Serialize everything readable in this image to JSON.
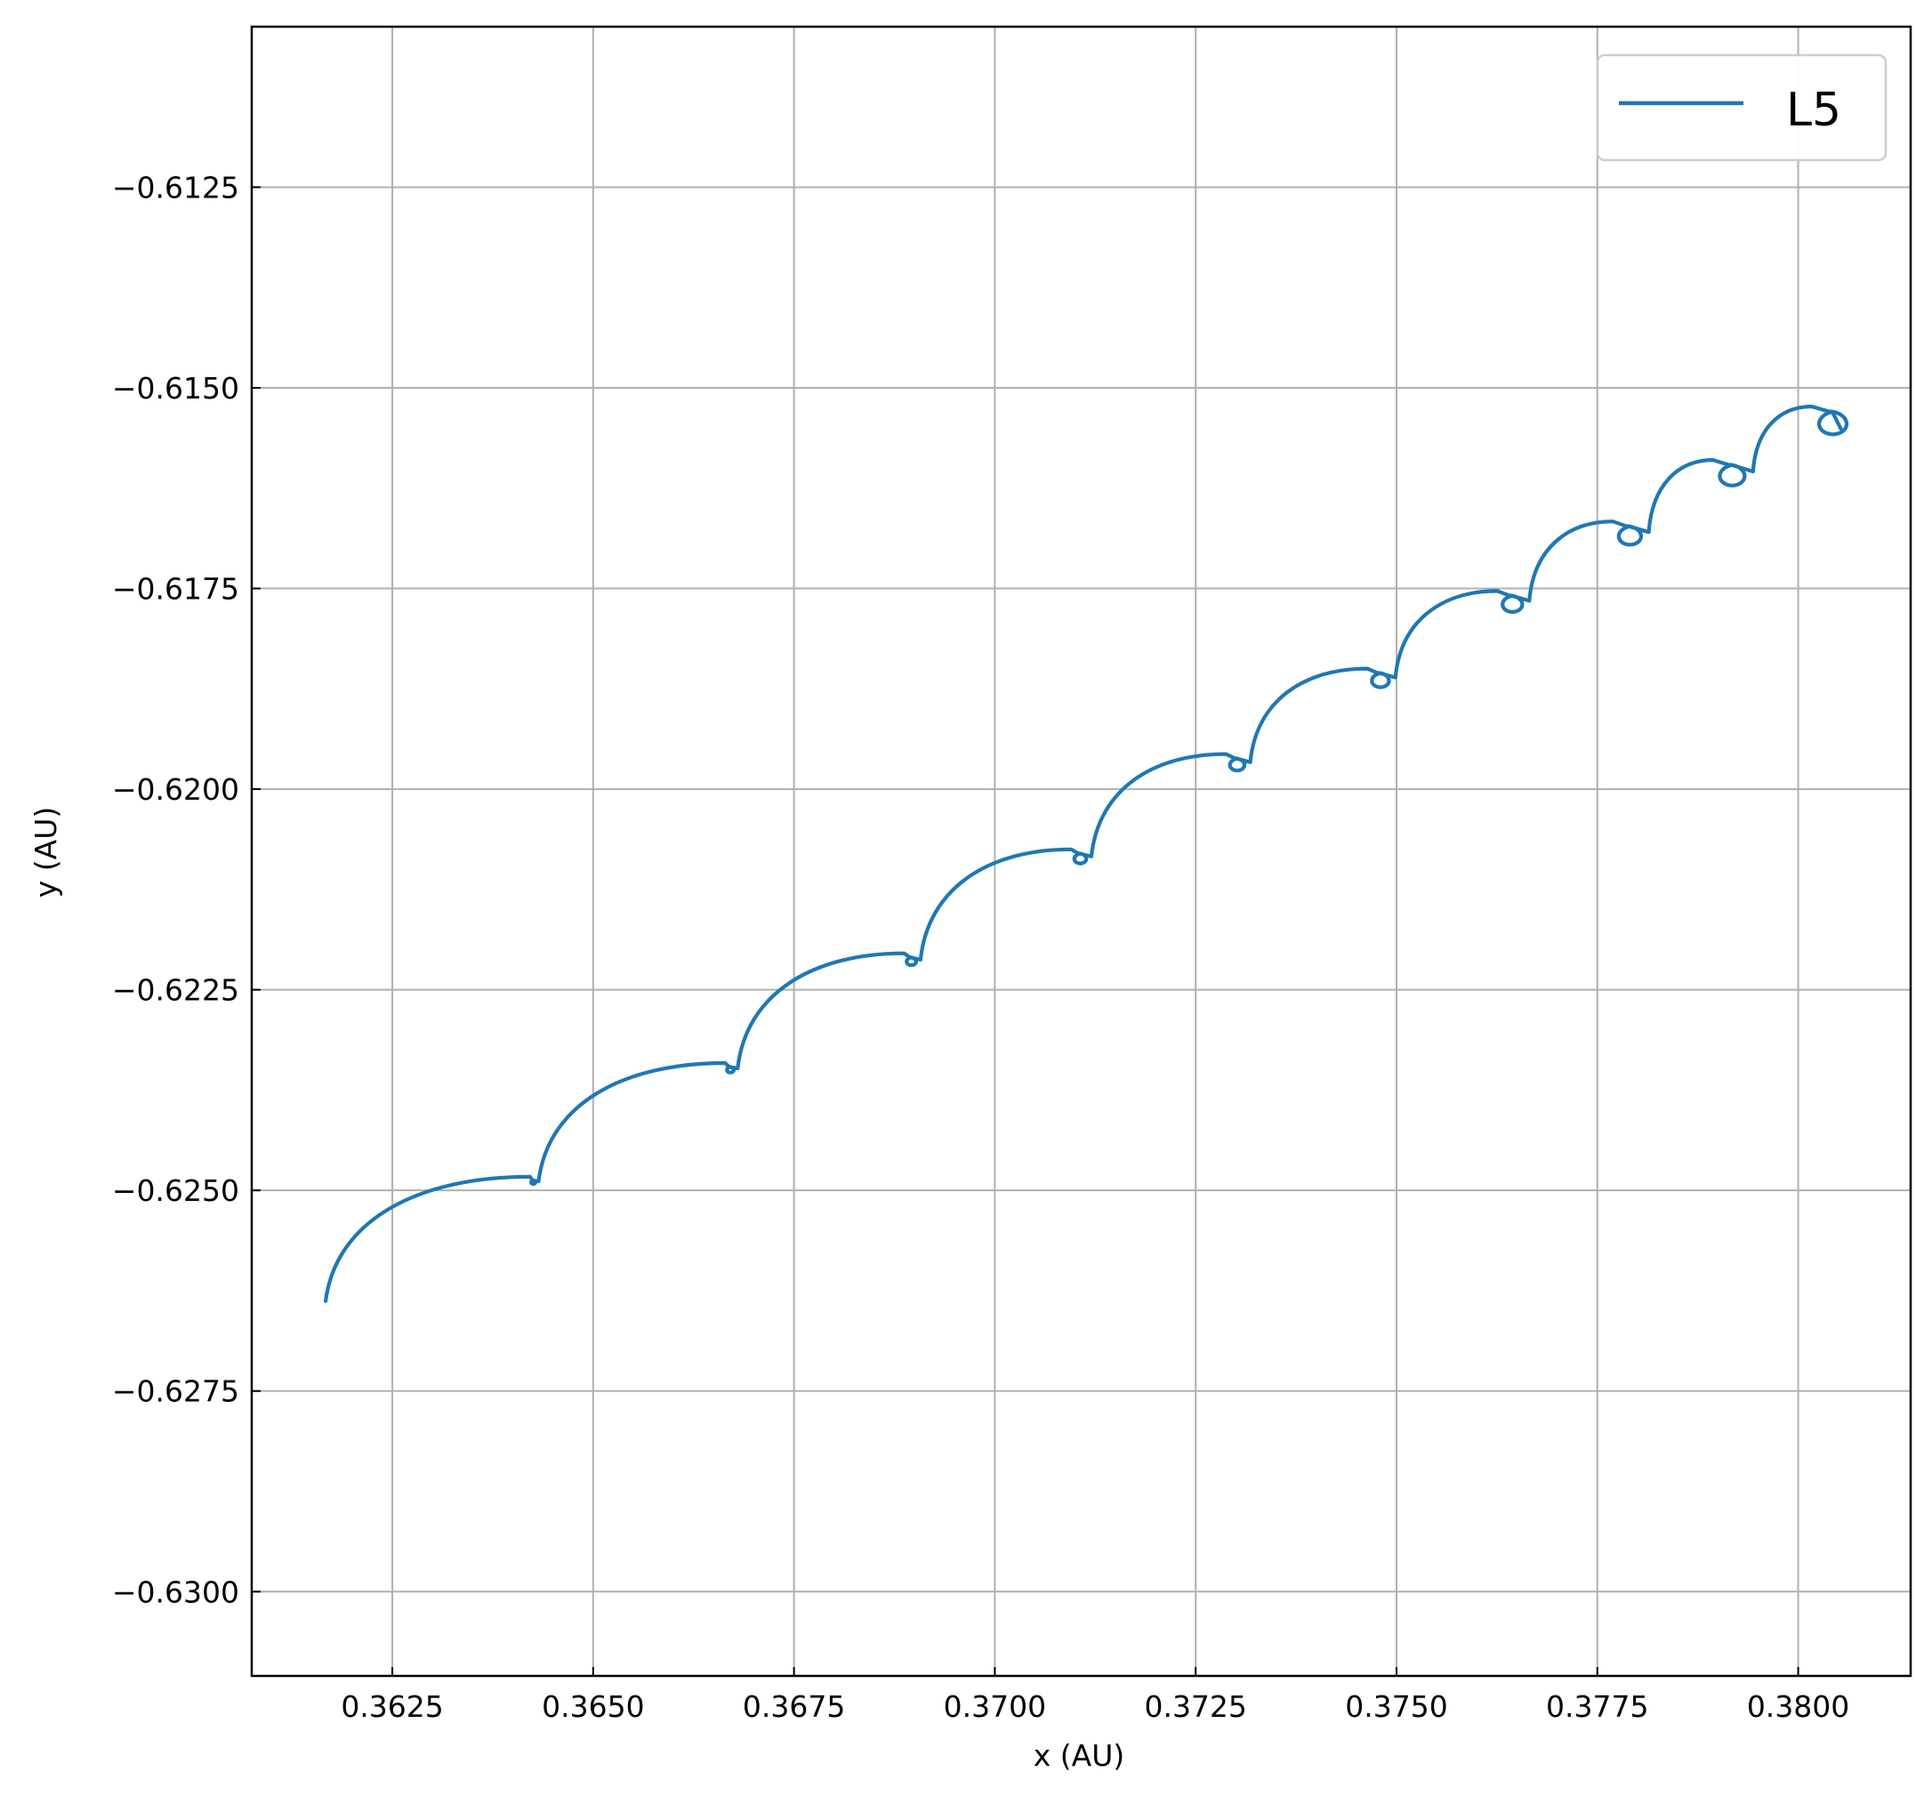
{
  "chart_data": {
    "type": "line",
    "xlabel": "x (AU)",
    "ylabel": "y (AU)",
    "xlim": [
      0.36075,
      0.3814
    ],
    "ylim": [
      -0.63105,
      -0.6105
    ],
    "grid": true,
    "legend_position": "top-right",
    "x_ticks": [
      0.3625,
      0.365,
      0.3675,
      0.37,
      0.3725,
      0.375,
      0.3775,
      0.38
    ],
    "x_tick_labels": [
      "0.3625",
      "0.3650",
      "0.3675",
      "0.3700",
      "0.3725",
      "0.3750",
      "0.3775",
      "0.3800"
    ],
    "y_ticks": [
      -0.6125,
      -0.615,
      -0.6175,
      -0.62,
      -0.6225,
      -0.625,
      -0.6275,
      -0.63
    ],
    "y_tick_labels": [
      "−0.6125",
      "−0.6150",
      "−0.6175",
      "−0.6200",
      "−0.6225",
      "−0.6250",
      "−0.6275",
      "−0.6300"
    ],
    "series": [
      {
        "name": "L5",
        "color": "#1f77b4",
        "cusps": [
          {
            "x": 0.36167,
            "y": -0.62638
          },
          {
            "x": 0.36425,
            "y": -0.6249
          },
          {
            "x": 0.3667,
            "y": -0.6235
          },
          {
            "x": 0.36895,
            "y": -0.62215
          },
          {
            "x": 0.37105,
            "y": -0.62087
          },
          {
            "x": 0.373,
            "y": -0.6197
          },
          {
            "x": 0.37478,
            "y": -0.61865
          },
          {
            "x": 0.37642,
            "y": -0.6177
          },
          {
            "x": 0.37788,
            "y": -0.61685
          },
          {
            "x": 0.37915,
            "y": -0.6161
          },
          {
            "x": 0.3804,
            "y": -0.61545
          }
        ]
      }
    ]
  }
}
